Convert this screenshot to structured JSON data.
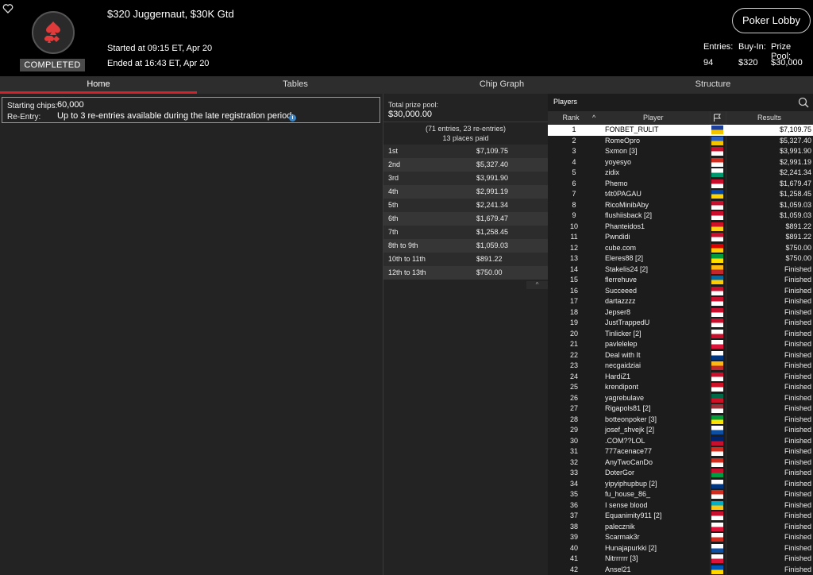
{
  "header": {
    "title": "$320 Juggernaut, $30K Gtd",
    "started": "Started at 09:15 ET, Apr 20",
    "ended": "Ended at 16:43 ET, Apr 20",
    "status": "COMPLETED",
    "lobby_button": "Poker Lobby",
    "entries_label": "Entries:",
    "entries_value": "94",
    "buyin_label": "Buy-In:",
    "buyin_value": "$320",
    "prize_label": "Prize Pool:",
    "prize_value": "$30,000"
  },
  "tabs": [
    "Home",
    "Tables",
    "Chip Graph",
    "Structure"
  ],
  "info": {
    "chips_label": "Starting chips:",
    "chips_value": "60,000",
    "reentry_label": "Re-Entry:",
    "reentry_value": "Up to 3 re-entries available during the late registration period."
  },
  "prizes": {
    "total_label": "Total prize pool:",
    "total_value": "$30,000.00",
    "entries_note": "(71 entries, 23 re-entries)",
    "places_note": "13 places paid",
    "rows": [
      {
        "place": "1st",
        "amount": "$7,109.75"
      },
      {
        "place": "2nd",
        "amount": "$5,327.40"
      },
      {
        "place": "3rd",
        "amount": "$3,991.90"
      },
      {
        "place": "4th",
        "amount": "$2,991.19"
      },
      {
        "place": "5th",
        "amount": "$2,241.34"
      },
      {
        "place": "6th",
        "amount": "$1,679.47"
      },
      {
        "place": "7th",
        "amount": "$1,258.45"
      },
      {
        "place": "8th to 9th",
        "amount": "$1,059.03"
      },
      {
        "place": "10th to 11th",
        "amount": "$891.22"
      },
      {
        "place": "12th to 13th",
        "amount": "$750.00"
      }
    ]
  },
  "players": {
    "title": "Players",
    "col_rank": "Rank",
    "col_player": "Player",
    "col_results": "Results",
    "rows": [
      {
        "rank": "1",
        "name": "FONBET_RULIT",
        "flag": [
          "#1d3f9a",
          "#f5c400"
        ],
        "result": "$7,109.75"
      },
      {
        "rank": "2",
        "name": "RomeOpro",
        "flag": [
          "#2a5fbf",
          "#f5c400"
        ],
        "result": "$5,327.40"
      },
      {
        "rank": "3",
        "name": "Sxmon [3]",
        "flag": [
          "#c8102e",
          "#ffffff"
        ],
        "result": "$3,991.90"
      },
      {
        "rank": "4",
        "name": "yoyesyo",
        "flag": [
          "#d52b1e",
          "#ffffff"
        ],
        "result": "$2,991.19"
      },
      {
        "rank": "5",
        "name": "zidix",
        "flag": [
          "#ffffff",
          "#00966e"
        ],
        "result": "$2,241.34"
      },
      {
        "rank": "6",
        "name": "Phemo",
        "flag": [
          "#c8102e",
          "#ffffff"
        ],
        "result": "$1,679.47"
      },
      {
        "rank": "7",
        "name": "t4t0PAGAU",
        "flag": [
          "#0046ae",
          "#ffd200"
        ],
        "result": "$1,258.45"
      },
      {
        "rank": "8",
        "name": "RicoMinibAby",
        "flag": [
          "#c8102e",
          "#ffffff"
        ],
        "result": "$1,059.03"
      },
      {
        "rank": "9",
        "name": "flushiisback [2]",
        "flag": [
          "#c8102e",
          "#ffffff"
        ],
        "result": "$1,059.03"
      },
      {
        "rank": "10",
        "name": "Phanteidos1",
        "flag": [
          "#ce1126",
          "#fcd116"
        ],
        "result": "$891.22"
      },
      {
        "rank": "11",
        "name": "Pwndidi",
        "flag": [
          "#c8102e",
          "#ffffff"
        ],
        "result": "$891.22"
      },
      {
        "rank": "12",
        "name": "cube.com",
        "flag": [
          "#dd0000",
          "#ffce00"
        ],
        "result": "$750.00"
      },
      {
        "rank": "13",
        "name": "Eleres88 [2]",
        "flag": [
          "#009c3b",
          "#ffdf00"
        ],
        "result": "$750.00"
      },
      {
        "rank": "14",
        "name": "Stakelis24 [2]",
        "flag": [
          "#fdb913",
          "#c1272d"
        ],
        "result": "Finished"
      },
      {
        "rank": "15",
        "name": "flerrehuve",
        "flag": [
          "#006aa7",
          "#fecc00"
        ],
        "result": "Finished"
      },
      {
        "rank": "16",
        "name": "Succeeed",
        "flag": [
          "#c8102e",
          "#ffffff"
        ],
        "result": "Finished"
      },
      {
        "rank": "17",
        "name": "dartazzzz",
        "flag": [
          "#c8102e",
          "#ffffff"
        ],
        "result": "Finished"
      },
      {
        "rank": "18",
        "name": "Jepser8",
        "flag": [
          "#c8102e",
          "#ffffff"
        ],
        "result": "Finished"
      },
      {
        "rank": "19",
        "name": "JustTrappedU",
        "flag": [
          "#c8102e",
          "#ffffff"
        ],
        "result": "Finished"
      },
      {
        "rank": "20",
        "name": "Tinlicker [2]",
        "flag": [
          "#ffffff",
          "#c8102e"
        ],
        "result": "Finished"
      },
      {
        "rank": "21",
        "name": "pavlelelep",
        "flag": [
          "#ffffff",
          "#dc143c"
        ],
        "result": "Finished"
      },
      {
        "rank": "22",
        "name": "Deal with It",
        "flag": [
          "#ffffff",
          "#003580"
        ],
        "result": "Finished"
      },
      {
        "rank": "23",
        "name": "necgaidziai",
        "flag": [
          "#fdb913",
          "#c1272d"
        ],
        "result": "Finished"
      },
      {
        "rank": "24",
        "name": "HardiZ1",
        "flag": [
          "#c8102e",
          "#ffffff"
        ],
        "result": "Finished"
      },
      {
        "rank": "25",
        "name": "krendipont",
        "flag": [
          "#ce1126",
          "#ffffff"
        ],
        "result": "Finished"
      },
      {
        "rank": "26",
        "name": "yagrebulave",
        "flag": [
          "#006847",
          "#ce1126"
        ],
        "result": "Finished"
      },
      {
        "rank": "27",
        "name": "Rigapols81 [2]",
        "flag": [
          "#9e3039",
          "#ffffff"
        ],
        "result": "Finished"
      },
      {
        "rank": "28",
        "name": "botteonpoker [3]",
        "flag": [
          "#009c3b",
          "#ffdf00"
        ],
        "result": "Finished"
      },
      {
        "rank": "29",
        "name": "josef_shvejk [2]",
        "flag": [
          "#ffffff",
          "#0b4ea2"
        ],
        "result": "Finished"
      },
      {
        "rank": "30",
        "name": ".COM??LOL",
        "flag": [
          "#012169",
          "#c8102e"
        ],
        "result": "Finished"
      },
      {
        "rank": "31",
        "name": "777acenace77",
        "flag": [
          "#d52b1e",
          "#ffffff"
        ],
        "result": "Finished"
      },
      {
        "rank": "32",
        "name": "AnyTwoCanDo",
        "flag": [
          "#d52b1e",
          "#ffffff"
        ],
        "result": "Finished"
      },
      {
        "rank": "33",
        "name": "DoterGor",
        "flag": [
          "#c8102e",
          "#009a44"
        ],
        "result": "Finished"
      },
      {
        "rank": "34",
        "name": "yipyiphupbup [2]",
        "flag": [
          "#ffffff",
          "#003580"
        ],
        "result": "Finished"
      },
      {
        "rank": "35",
        "name": "fu_house_86_",
        "flag": [
          "#d52b1e",
          "#ffffff"
        ],
        "result": "Finished"
      },
      {
        "rank": "36",
        "name": "I sense blood",
        "flag": [
          "#00afca",
          "#fec50c"
        ],
        "result": "Finished"
      },
      {
        "rank": "37",
        "name": "Equanimity911 [2]",
        "flag": [
          "#c8102e",
          "#ffffff"
        ],
        "result": "Finished"
      },
      {
        "rank": "38",
        "name": "palecznik",
        "flag": [
          "#ffffff",
          "#dc143c"
        ],
        "result": "Finished"
      },
      {
        "rank": "39",
        "name": "Scarmak3r",
        "flag": [
          "#ffffff",
          "#d52b1e"
        ],
        "result": "Finished"
      },
      {
        "rank": "40",
        "name": "Hunajapurkki [2]",
        "flag": [
          "#ffffff",
          "#0b4ea2"
        ],
        "result": "Finished"
      },
      {
        "rank": "41",
        "name": "Nitrrrrrr [3]",
        "flag": [
          "#ffffff",
          "#dc143c"
        ],
        "result": "Finished"
      },
      {
        "rank": "42",
        "name": "Ansel21",
        "flag": [
          "#0057b7",
          "#ffd700"
        ],
        "result": "Finished"
      }
    ]
  },
  "colors": {
    "accent": "#d4222a",
    "highlight_row": "#ffffff",
    "info_icon": "#3a86c8"
  }
}
